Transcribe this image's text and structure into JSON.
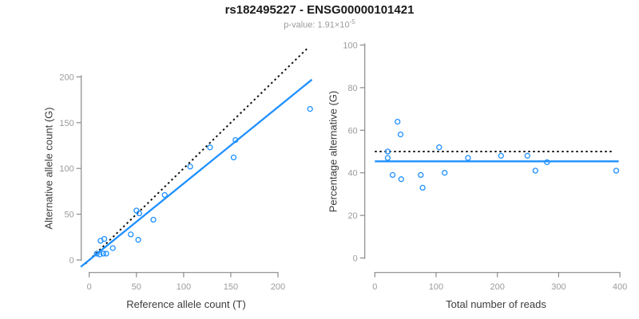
{
  "title": "rs182495227 - ENSG00000101421",
  "subtitle": {
    "text": "p-value: 1.91×10",
    "exponent": "-5"
  },
  "colors": {
    "accent_blue": "#1E90FF",
    "dotted_black": "#111111",
    "axis_gray": "#8a8a8a",
    "tick_label_gray": "#9b9b9b",
    "axis_title_dark": "#3c3c3c",
    "subtitle_gray": "#9b9b9b"
  },
  "chart_data": [
    {
      "type": "scatter",
      "panel": "left",
      "title": "rs182495227 - ENSG00000101421",
      "xlabel": "Reference allele count (T)",
      "ylabel": "Alternative allele count (G)",
      "xticks": [
        0,
        50,
        100,
        150,
        200
      ],
      "yticks": [
        0,
        50,
        100,
        150,
        200
      ],
      "xlim": [
        0,
        234
      ],
      "ylim": [
        0,
        233
      ],
      "grid": false,
      "x": [
        8,
        11,
        15,
        18,
        12,
        16,
        25,
        44,
        52,
        50,
        53,
        68,
        80,
        107,
        128,
        153,
        155,
        234
      ],
      "y": [
        7,
        6,
        7,
        7,
        21,
        23,
        13,
        28,
        22,
        54,
        51,
        44,
        71,
        102,
        123,
        112,
        131,
        165
      ],
      "lines": [
        {
          "name": "identity",
          "style": "dotted",
          "slope": 1,
          "intercept": 0,
          "color": "#111111"
        },
        {
          "name": "fit",
          "style": "solid",
          "slope": 0.835,
          "intercept": 0,
          "color": "#1E90FF"
        }
      ]
    },
    {
      "type": "scatter",
      "panel": "right",
      "title": "rs182495227 - ENSG00000101421",
      "xlabel": "Total number of reads",
      "ylabel": "Percentage alternative (G)",
      "xticks": [
        0,
        100,
        200,
        300,
        400
      ],
      "yticks": [
        0,
        20,
        40,
        60,
        80,
        100
      ],
      "xlim": [
        0,
        400
      ],
      "ylim": [
        0,
        100
      ],
      "grid": false,
      "x": [
        21,
        21,
        29,
        43,
        37,
        42,
        75,
        78,
        105,
        114,
        152,
        206,
        249,
        262,
        281,
        394
      ],
      "y": [
        50,
        47,
        39,
        37,
        64,
        58,
        39,
        33,
        52,
        40,
        47,
        48,
        48,
        41,
        45,
        41
      ],
      "lines": [
        {
          "name": "expected-50pct",
          "style": "dotted",
          "y": 50,
          "color": "#111111"
        },
        {
          "name": "fit-mean-pct",
          "style": "solid",
          "y": 45.4,
          "color": "#1E90FF"
        }
      ]
    }
  ]
}
